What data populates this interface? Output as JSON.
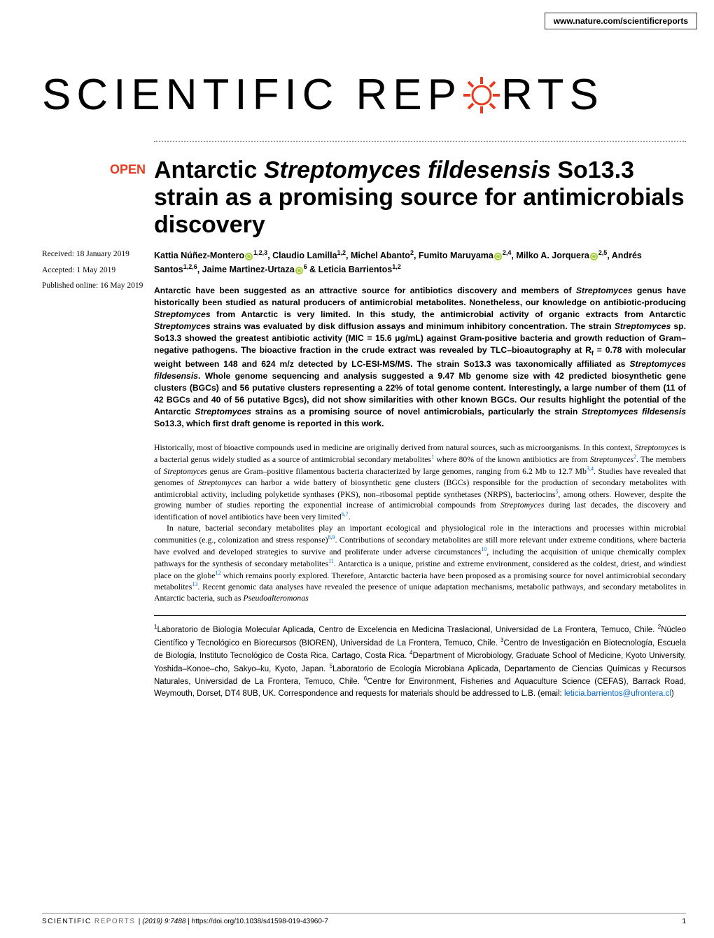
{
  "header": {
    "url": "www.nature.com/scientificreports"
  },
  "logo": {
    "text1": "SCIENTIFIC",
    "text2": "REP",
    "text3": "RTS",
    "gear_color": "#e63b1f"
  },
  "badge": {
    "open": "OPEN"
  },
  "dates": {
    "received": "Received: 18 January 2019",
    "accepted": "Accepted: 1 May 2019",
    "published": "Published online: 16 May 2019"
  },
  "title": {
    "part1": "Antarctic ",
    "italic1": "Streptomyces fildesensis",
    "part2": " So13.3 strain as a promising source for antimicrobials discovery"
  },
  "authors_html": "Kattia Núñez-Montero<span class=\"orcid-icon\"></span><sup>1,2,3</sup>, Claudio Lamilla<sup>1,2</sup>, Michel Abanto<sup>2</sup>, Fumito Maruyama<span class=\"orcid-icon\"></span><sup>2,4</sup>, Milko A. Jorquera<span class=\"orcid-icon\"></span><sup>2,5</sup>, Andrés Santos<sup>1,2,6</sup>, Jaime Martinez-Urtaza<span class=\"orcid-icon\"></span><sup>6</sup> & Leticia Barrientos<sup>1,2</sup>",
  "abstract_html": "Antarctic have been suggested as an attractive source for antibiotics discovery and members of <span class=\"italic\">Streptomyces</span> genus have historically been studied as natural producers of antimicrobial metabolites. Nonetheless, our knowledge on antibiotic-producing <span class=\"italic\">Streptomyces</span> from Antarctic is very limited. In this study, the antimicrobial activity of organic extracts from Antarctic <span class=\"italic\">Streptomyces</span> strains was evaluated by disk diffusion assays and minimum inhibitory concentration. The strain <span class=\"italic\">Streptomyces</span> sp. So13.3 showed the greatest antibiotic activity (MIC = 15.6 μg/mL) against Gram-positive bacteria and growth reduction of Gram–negative pathogens. The bioactive fraction in the crude extract was revealed by TLC–bioautography at R<sub>f</sub> = 0.78 with molecular weight between 148 and 624 m/z detected by LC-ESI-MS/MS. The strain So13.3 was taxonomically affiliated as <span class=\"italic\">Streptomyces fildesensis</span>. Whole genome sequencing and analysis suggested a 9.47 Mb genome size with 42 predicted biosynthetic gene clusters (BGCs) and 56 putative clusters representing a 22% of total genome content. Interestingly, a large number of them (11 of 42 BGCs and 40 of 56 putative Bgcs), did not show similarities with other known BGCs. Our results highlight the potential of the Antarctic <span class=\"italic\">Streptomyces</span> strains as a promising source of novel antimicrobials, particularly the strain <span class=\"italic\">Streptomyces fildesensis</span> So13.3, which first draft genome is reported in this work.",
  "body": {
    "para1_html": "Historically, most of bioactive compounds used in medicine are originally derived from natural sources, such as microorganisms. In this context, <span class=\"italic\">Streptomyces</span> is a bacterial genus widely studied as a source of antimicrobial secondary metabolites<sup>1</sup> where 80% of the known antibiotics are from <span class=\"italic\">Streptomyces</span><sup>2</sup>. The members of <span class=\"italic\">Streptomyces</span> genus are Gram–positive filamentous bacteria characterized by large genomes, ranging from 6.2 Mb to 12.7 Mb<sup>3,4</sup>. Studies have revealed that genomes of <span class=\"italic\">Streptomyces</span> can harbor a wide battery of biosynthetic gene clusters (BGCs) responsible for the production of secondary metabolites with antimicrobial activity, including polyketide synthases (PKS), non–ribosomal peptide synthetases (NRPS), bacteriocins<sup>5</sup>, among others. However, despite the growing number of studies reporting the exponential increase of antimicrobial compounds from <span class=\"italic\">Streptomyces</span> during last decades, the discovery and identification of novel antibiotics have been very limited<sup>6,7</sup>.",
    "para2_html": "In nature, bacterial secondary metabolites play an important ecological and physiological role in the interactions and processes within microbial communities (e.g., colonization and stress response)<sup>8,9</sup>. Contributions of secondary metabolites are still more relevant under extreme conditions, where bacteria have evolved and developed strategies to survive and proliferate under adverse circumstances<sup>10</sup>, including the acquisition of unique chemically complex pathways for the synthesis of secondary metabolites<sup>11</sup>. Antarctica is a unique, pristine and extreme environment, considered as the coldest, driest, and windiest place on the globe<sup>12</sup> which remains poorly explored. Therefore, Antarctic bacteria have been proposed as a promising source for novel antimicrobial secondary metabolites<sup>13</sup>. Recent genomic data analyses have revealed the presence of unique adaptation mechanisms, metabolic pathways, and secondary metabolites in Antarctic bacteria, such as <span class=\"italic\">Pseudoalteromonas</span>"
  },
  "affiliations_html": "<sup>1</sup>Laboratorio de Biología Molecular Aplicada, Centro de Excelencia en Medicina Traslacional, Universidad de La Frontera, Temuco, Chile. <sup>2</sup>Núcleo Científico y Tecnológico en Biorecursos (BIOREN), Universidad de La Frontera, Temuco, Chile. <sup>3</sup>Centro de Investigación en Biotecnología, Escuela de Biología, Instituto Tecnológico de Costa Rica, Cartago, Costa Rica. <sup>4</sup>Department of Microbiology, Graduate School of Medicine, Kyoto University, Yoshida–Konoe–cho, Sakyo–ku, Kyoto, Japan. <sup>5</sup>Laboratorio de Ecología Microbiana Aplicada, Departamento de Ciencias Químicas y Recursos Naturales, Universidad de La Frontera, Temuco, Chile. <sup>6</sup>Centre for Environment, Fisheries and Aquaculture Science (CEFAS), Barrack Road, Weymouth, Dorset, DT4 8UB, UK. Correspondence and requests for materials should be addressed to L.B. (email: <span class=\"email\">leticia.barrientos@ufrontera.cl</span>)",
  "footer": {
    "journal1": "SCIENTIFIC ",
    "journal2": "REPORTS",
    "citation_italic": "(2019) 9:7488 ",
    "citation_rest": " | https://doi.org/10.1038/s41598-019-43960-7",
    "page": "1"
  },
  "colors": {
    "accent": "#e63b1f",
    "link": "#0066cc",
    "orcid": "#a6ce39",
    "text": "#000000",
    "background": "#ffffff",
    "divider": "#999999"
  }
}
